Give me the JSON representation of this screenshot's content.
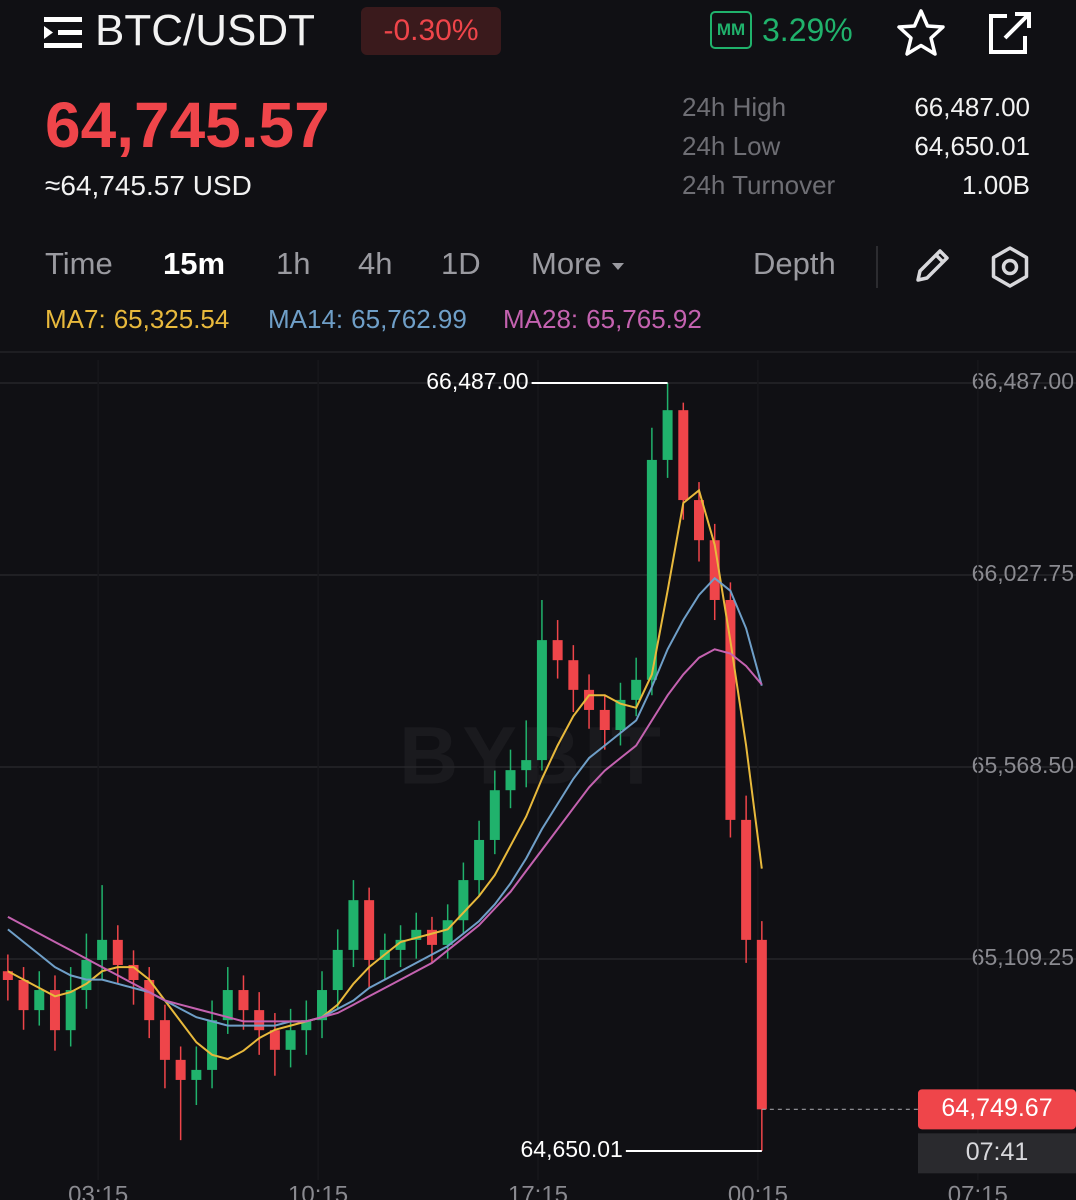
{
  "header": {
    "symbol": "BTC/USDT",
    "change": "-0.30%",
    "mm_badge": "MM",
    "mm_rate": "3.29%",
    "price": "64,745.57",
    "price_usd": "≈64,745.57 USD"
  },
  "stats": [
    {
      "label": "24h High",
      "value": "66,487.00"
    },
    {
      "label": "24h Low",
      "value": "64,650.01"
    },
    {
      "label": "24h Turnover",
      "value": "1.00B"
    }
  ],
  "tabs": [
    "Time",
    "15m",
    "1h",
    "4h",
    "1D",
    "More",
    "Depth"
  ],
  "active_tab": 1,
  "chart_data": {
    "type": "candlestick",
    "watermark": "BYBIT",
    "up_color": "#20b26c",
    "down_color": "#ef454a",
    "grid": true,
    "ma": [
      {
        "name": "MA7:",
        "value_label": "65,325.54",
        "color": "#e8b93c",
        "values": [
          65080,
          65060,
          65040,
          65020,
          65030,
          65050,
          65080,
          65090,
          65090,
          65060,
          65010,
          64960,
          64910,
          64880,
          64870,
          64890,
          64920,
          64940,
          64950,
          64960,
          64970,
          65000,
          65050,
          65090,
          65120,
          65150,
          65160,
          65170,
          65180,
          65220,
          65260,
          65310,
          65380,
          65450,
          65540,
          65620,
          65690,
          65740,
          65740,
          65720,
          65710,
          65790,
          65990,
          66200,
          66230,
          66100,
          65870,
          65620,
          65325.54
        ]
      },
      {
        "name": "MA14:",
        "value_label": "65,762.99",
        "color": "#6f9fc8",
        "values": [
          65180,
          65150,
          65120,
          65090,
          65070,
          65060,
          65060,
          65050,
          65040,
          65030,
          65010,
          64990,
          64970,
          64960,
          64950,
          64950,
          64950,
          64950,
          64960,
          64960,
          64970,
          64990,
          65010,
          65040,
          65060,
          65080,
          65100,
          65120,
          65140,
          65170,
          65200,
          65240,
          65290,
          65350,
          65420,
          65480,
          65540,
          65590,
          65620,
          65650,
          65680,
          65760,
          65850,
          65920,
          65980,
          66020,
          65990,
          65900,
          65762.99
        ]
      },
      {
        "name": "MA28:",
        "value_label": "65,765.92",
        "color": "#c462b0",
        "values": [
          65210,
          65190,
          65170,
          65150,
          65130,
          65110,
          65090,
          65070,
          65050,
          65030,
          65010,
          65000,
          64990,
          64980,
          64970,
          64960,
          64960,
          64960,
          64960,
          64960,
          64970,
          64980,
          65000,
          65020,
          65040,
          65060,
          65080,
          65100,
          65130,
          65160,
          65190,
          65230,
          65270,
          65320,
          65370,
          65420,
          65470,
          65520,
          65560,
          65590,
          65620,
          65680,
          65740,
          65790,
          65830,
          65850,
          65840,
          65810,
          65765.92
        ]
      }
    ],
    "open": [
      65080,
      65059,
      64987,
      65035,
      64939,
      65035,
      65107,
      65155,
      65095,
      65059,
      64963,
      64868,
      64820,
      64844,
      64963,
      65035,
      64987,
      64939,
      64892,
      64939,
      64963,
      65035,
      65131,
      65250,
      65107,
      65131,
      65155,
      65179,
      65143,
      65202,
      65298,
      65394,
      65513,
      65561,
      65585,
      65872,
      65824,
      65753,
      65705,
      65657,
      65729,
      65777,
      66303,
      66422,
      66207,
      66111,
      65968,
      65442,
      65155
    ],
    "high": [
      65120,
      65090,
      65080,
      65070,
      65090,
      65170,
      65286,
      65190,
      65130,
      65090,
      65000,
      64900,
      64900,
      65010,
      65090,
      65070,
      65030,
      64980,
      64990,
      65010,
      65080,
      65180,
      65298,
      65280,
      65170,
      65190,
      65220,
      65210,
      65240,
      65340,
      65440,
      65560,
      65610,
      65680,
      65968,
      65920,
      65860,
      65790,
      65740,
      65770,
      65830,
      66380,
      66487.0,
      66440,
      66250,
      66150,
      66010,
      65500,
      65200
    ],
    "low": [
      65010,
      64940,
      64950,
      64890,
      64900,
      64990,
      65060,
      65050,
      65000,
      64920,
      64800,
      64676,
      64760,
      64800,
      64930,
      64940,
      64880,
      64830,
      64850,
      64880,
      64920,
      64990,
      65090,
      65040,
      65060,
      65090,
      65110,
      65100,
      65110,
      65170,
      65260,
      65360,
      65470,
      65520,
      65560,
      65780,
      65700,
      65660,
      65610,
      65620,
      65690,
      65740,
      66260,
      66160,
      66060,
      65920,
      65400,
      65100,
      64650.01
    ],
    "close": [
      65059,
      64987,
      65035,
      64939,
      65035,
      65107,
      65155,
      65095,
      65059,
      64963,
      64868,
      64820,
      64844,
      64963,
      65035,
      64987,
      64939,
      64892,
      64939,
      64963,
      65035,
      65131,
      65250,
      65107,
      65131,
      65155,
      65179,
      65143,
      65202,
      65298,
      65394,
      65513,
      65561,
      65585,
      65872,
      65824,
      65753,
      65705,
      65657,
      65729,
      65777,
      66303,
      66422,
      66207,
      66111,
      65968,
      65442,
      65155,
      64749.67
    ],
    "ylim": [
      64650.01,
      66487.0
    ],
    "yticks": [
      {
        "value": 66487.0,
        "label": "66,487.00"
      },
      {
        "value": 66027.75,
        "label": "66,027.75"
      },
      {
        "value": 65568.5,
        "label": "65,568.50"
      },
      {
        "value": 65109.25,
        "label": "65,109.25"
      }
    ],
    "xlim": [
      -0.5,
      68
    ],
    "xticks": [
      {
        "value": 5.75,
        "label": "03:15"
      },
      {
        "value": 19.75,
        "label": "10:15"
      },
      {
        "value": 33.75,
        "label": "17:15"
      },
      {
        "value": 47.75,
        "label": "00:15"
      },
      {
        "value": 61.75,
        "label": "07:15"
      }
    ],
    "annotations": [
      {
        "label": "66,487.00"
      },
      {
        "label": "64,650.01"
      }
    ],
    "last_price": {
      "label": "64,749.67",
      "countdown": "07:41"
    }
  }
}
